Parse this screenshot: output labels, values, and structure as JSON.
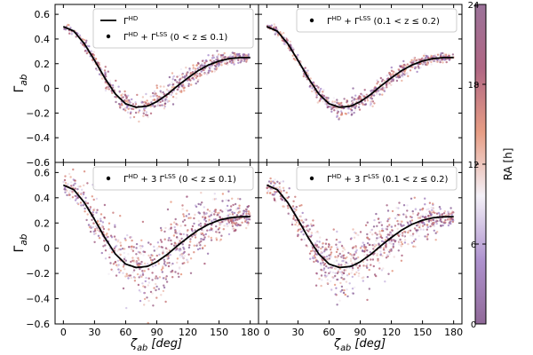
{
  "chart_data": {
    "type": "scatter",
    "x_label": "ζ_ab [deg]",
    "y_label": "Γ_ab",
    "x_range": [
      -8,
      188
    ],
    "y_range": [
      -0.6,
      0.68
    ],
    "x_ticks": [
      0,
      30,
      60,
      90,
      120,
      150,
      180
    ],
    "y_ticks": [
      -0.6,
      -0.4,
      -0.2,
      0,
      0.2,
      0.4,
      0.6
    ],
    "y_tick_labels": [
      "−0.6",
      "−0.4",
      "−0.2",
      "0",
      "0.2",
      "0.4",
      "0.6"
    ],
    "reference_curve": {
      "name": "Hellings–Downs Γ^HD",
      "x": [
        0,
        10,
        20,
        30,
        40,
        50,
        60,
        70,
        80,
        82,
        90,
        100,
        110,
        120,
        130,
        140,
        150,
        160,
        170,
        180
      ],
      "y": [
        0.5,
        0.464,
        0.364,
        0.228,
        0.083,
        -0.045,
        -0.125,
        -0.153,
        -0.145,
        -0.14,
        -0.108,
        -0.05,
        0.02,
        0.085,
        0.144,
        0.19,
        0.222,
        0.241,
        0.249,
        0.25
      ]
    },
    "panels": [
      {
        "id": "top-left",
        "legend": [
          {
            "marker": "line",
            "label": "Γ^HD"
          },
          {
            "marker": "dot",
            "label": "Γ^HD + Γ^LSS  (0 < z ≤ 0.1)"
          }
        ],
        "scatter_spread": 0.035,
        "n_points": 650
      },
      {
        "id": "top-right",
        "legend": [
          {
            "marker": "dot",
            "label": "Γ^HD + Γ^LSS  (0.1 < z ≤ 0.2)"
          }
        ],
        "scatter_spread": 0.028,
        "n_points": 650
      },
      {
        "id": "bottom-left",
        "legend": [
          {
            "marker": "dot",
            "label": "Γ^HD + 3 Γ^LSS  (0 < z ≤ 0.1)"
          }
        ],
        "scatter_spread": 0.1,
        "n_points": 800
      },
      {
        "id": "bottom-right",
        "legend": [
          {
            "marker": "dot",
            "label": "Γ^HD + 3 Γ^LSS  (0.1 < z ≤ 0.2)"
          }
        ],
        "scatter_spread": 0.085,
        "n_points": 800
      }
    ],
    "colorbar": {
      "label": "RA [h]",
      "range": [
        0,
        24
      ],
      "ticks": [
        0,
        6,
        12,
        18,
        24
      ],
      "colors": [
        "#7d4f86",
        "#a07fc6",
        "#f2eef6",
        "#e38c6f",
        "#a24c6e",
        "#8a5a88"
      ]
    }
  }
}
